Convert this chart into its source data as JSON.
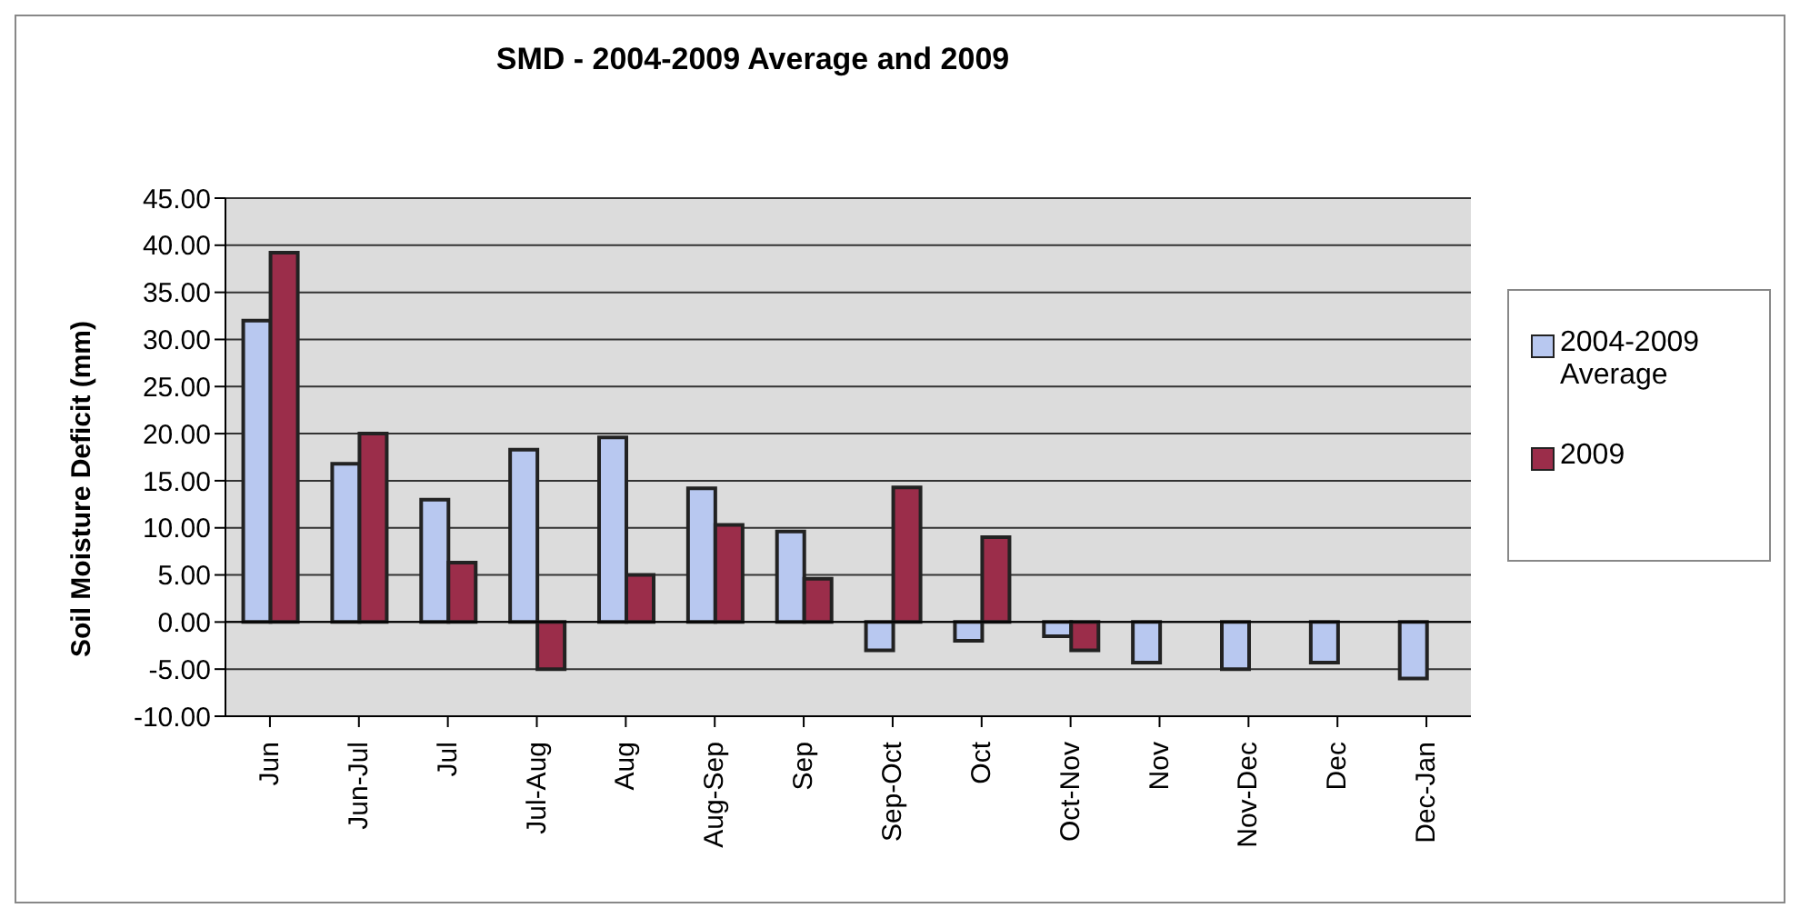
{
  "chart_data": {
    "type": "bar",
    "title": "SMD - 2004-2009 Average and 2009",
    "ylabel": "Soil Moisture Deficit (mm)",
    "categories": [
      "Jun",
      "Jun-Jul",
      "Jul",
      "Jul-Aug",
      "Aug",
      "Aug-Sep",
      "Sep",
      "Sep-Oct",
      "Oct",
      "Oct-Nov",
      "Nov",
      "Nov-Dec",
      "Dec",
      "Dec-Jan"
    ],
    "series": [
      {
        "name": "2004-2009 Average",
        "color": "#b8c8f0",
        "values": [
          32,
          16.8,
          13,
          18.3,
          19.6,
          14.2,
          9.6,
          -3,
          -2,
          -1.5,
          -4.3,
          -5,
          -4.3,
          -6
        ]
      },
      {
        "name": "2009",
        "color": "#9b2d4a",
        "values": [
          39.2,
          20,
          6.3,
          -5,
          5,
          10.3,
          4.6,
          14.3,
          9,
          -3,
          null,
          null,
          null,
          null
        ]
      }
    ],
    "ylim": [
      -10,
      45
    ],
    "yticks": [
      {
        "value": -10,
        "label": "-10.00"
      },
      {
        "value": -5,
        "label": "-5.00"
      },
      {
        "value": 0,
        "label": "0.00"
      },
      {
        "value": 5,
        "label": "5.00"
      },
      {
        "value": 10,
        "label": "10.00"
      },
      {
        "value": 15,
        "label": "15.00"
      },
      {
        "value": 20,
        "label": "20.00"
      },
      {
        "value": 25,
        "label": "25.00"
      },
      {
        "value": 30,
        "label": "30.00"
      },
      {
        "value": 35,
        "label": "35.00"
      },
      {
        "value": 40,
        "label": "40.00"
      },
      {
        "value": 45,
        "label": "45.00"
      }
    ],
    "grid": "y",
    "legend": "right"
  }
}
